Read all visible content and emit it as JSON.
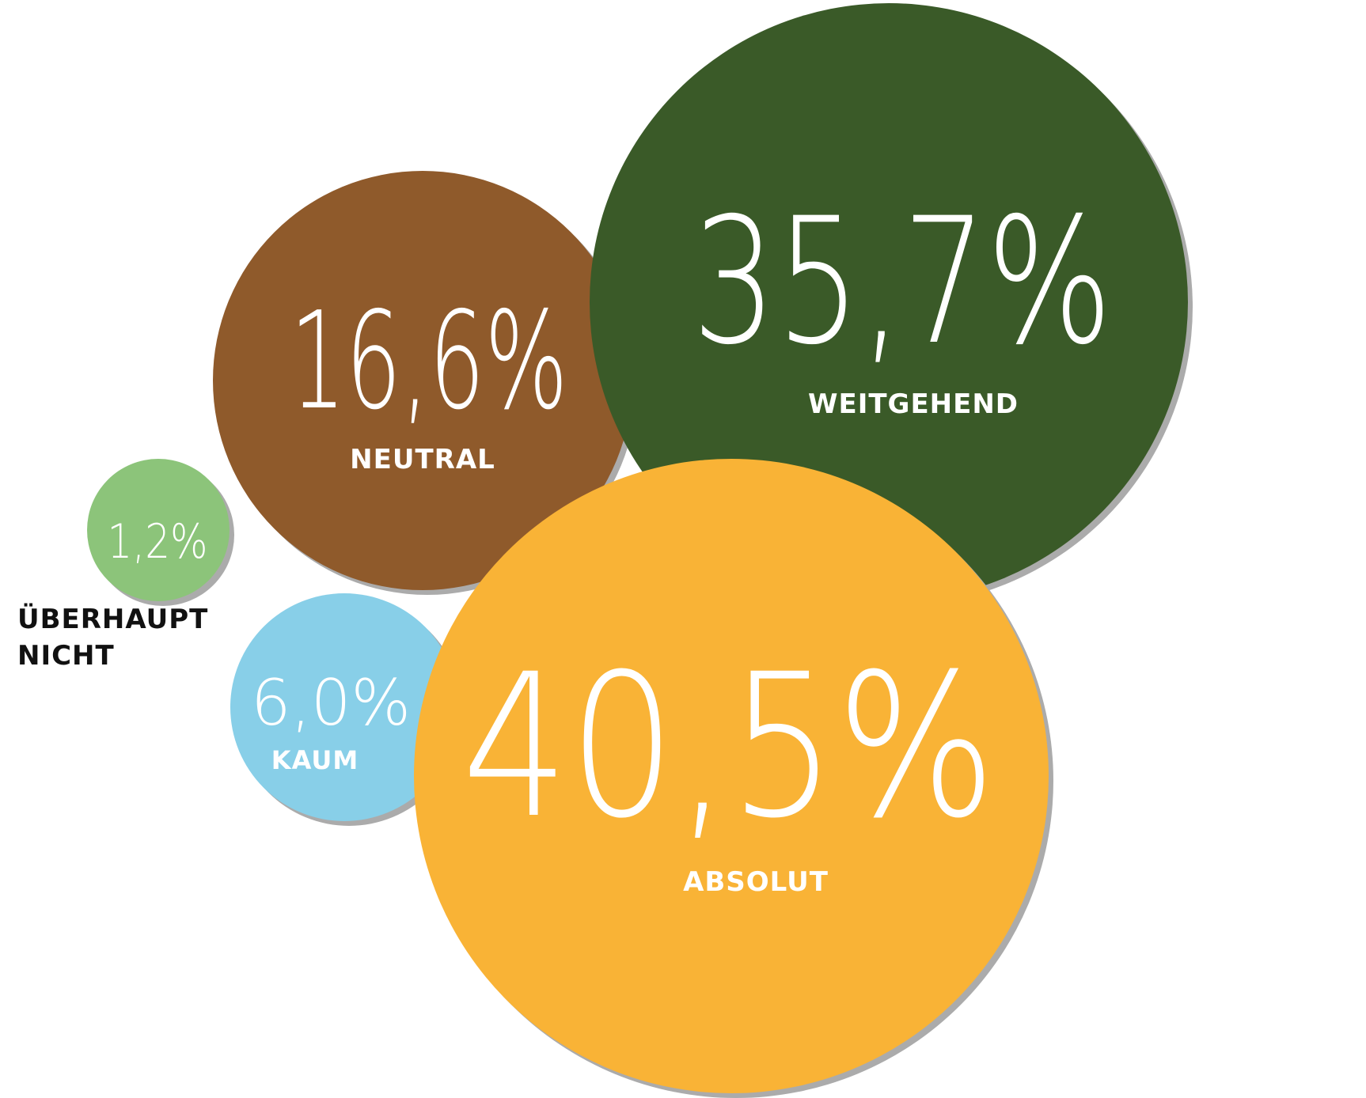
{
  "chart_data": {
    "type": "bubble",
    "title": "",
    "unit": "%",
    "series": [
      {
        "name": "ÜBERHAUPT NICHT",
        "value": 1.2,
        "value_label": "1,2%",
        "label_lines": [
          "ÜBERHAUPT",
          "NICHT"
        ],
        "color": "#8cc47a",
        "label_color": "#111111"
      },
      {
        "name": "KAUM",
        "value": 6.0,
        "value_label": "6,0%",
        "label_lines": [
          "KAUM"
        ],
        "color": "#88cfe8",
        "label_color": "#ffffff"
      },
      {
        "name": "NEUTRAL",
        "value": 16.6,
        "value_label": "16,6%",
        "label_lines": [
          "NEUTRAL"
        ],
        "color": "#8f5a2b",
        "label_color": "#ffffff"
      },
      {
        "name": "WEITGEHEND",
        "value": 35.7,
        "value_label": "35,7%",
        "label_lines": [
          "WEITGEHEND"
        ],
        "color": "#3a5a28",
        "label_color": "#ffffff"
      },
      {
        "name": "ABSOLUT",
        "value": 40.5,
        "value_label": "40,5%",
        "label_lines": [
          "ABSOLUT"
        ],
        "color": "#f9b336",
        "label_color": "#ffffff"
      }
    ],
    "shadow_color": "#ababab",
    "legend": "none",
    "grid": false
  }
}
